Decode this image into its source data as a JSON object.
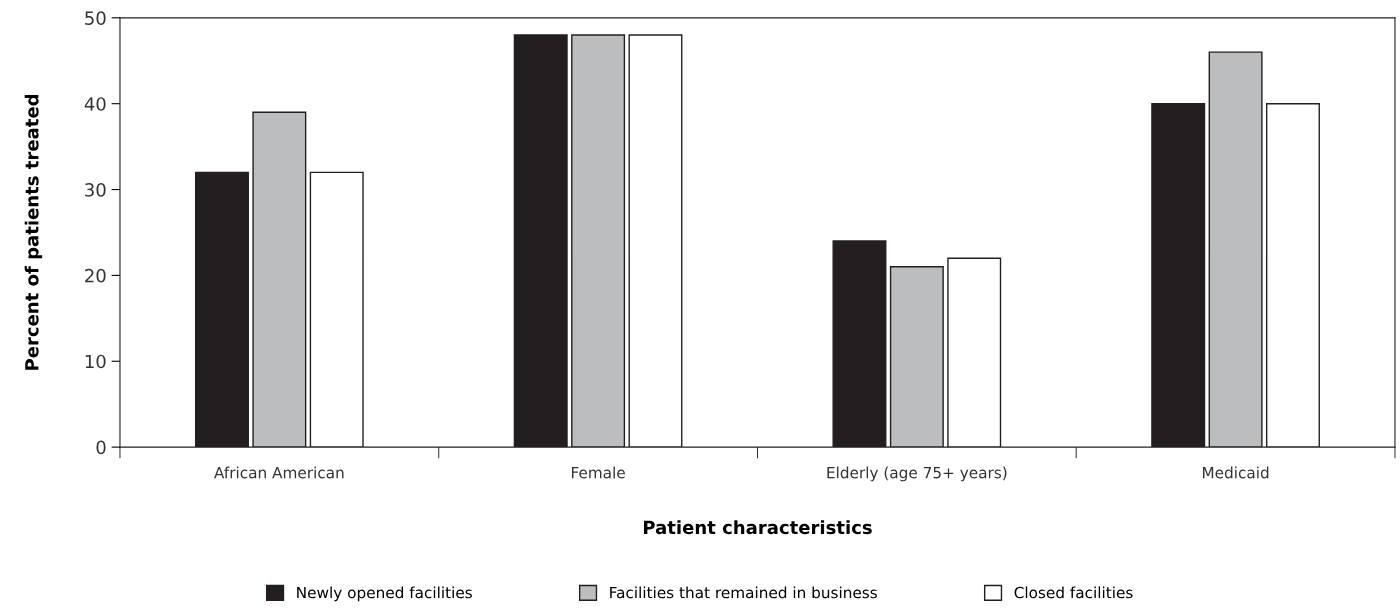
{
  "chart_data": {
    "type": "bar",
    "xlabel": "Patient characteristics",
    "ylabel": "Percent of patients treated",
    "categories": [
      "African American",
      "Female",
      "Elderly (age 75+ years)",
      "Medicaid"
    ],
    "series": [
      {
        "name": "Newly opened facilities",
        "color": "#231f20",
        "values": [
          32,
          48,
          24,
          40
        ]
      },
      {
        "name": "Facilities that remained in business",
        "color": "#bcbdbf",
        "values": [
          39,
          48,
          21,
          46
        ]
      },
      {
        "name": "Closed facilities",
        "color": "#ffffff",
        "values": [
          32,
          48,
          22,
          40
        ]
      }
    ],
    "ylim": [
      0,
      50
    ],
    "yticks": [
      0,
      10,
      20,
      30,
      40,
      50
    ],
    "grid": false,
    "legend": "bottom"
  }
}
